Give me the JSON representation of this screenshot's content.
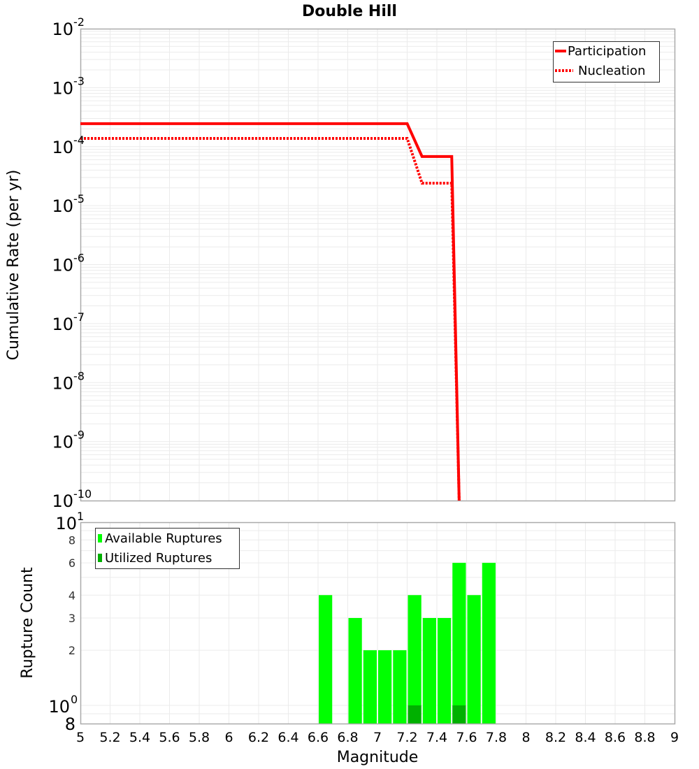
{
  "title": "Double Hill",
  "colors": {
    "participation": "#ff0000",
    "nucleation": "#ff0000",
    "available": "#00ff00",
    "utilized": "#00b000",
    "grid": "#ebebeb",
    "frame": "#aaaaaa"
  },
  "top_plot": {
    "ylabel": "Cumulative Rate (per yr)",
    "y_ticks": [
      {
        "base": "10",
        "exp": "-2"
      },
      {
        "base": "10",
        "exp": "-3"
      },
      {
        "base": "10",
        "exp": "-4"
      },
      {
        "base": "10",
        "exp": "-5"
      },
      {
        "base": "10",
        "exp": "-6"
      },
      {
        "base": "10",
        "exp": "-7"
      },
      {
        "base": "10",
        "exp": "-8"
      },
      {
        "base": "10",
        "exp": "-9"
      },
      {
        "base": "10",
        "exp": "-10"
      }
    ],
    "legend": [
      {
        "label": "Participation",
        "style": "solid"
      },
      {
        "label": "Nucleation",
        "style": "dotted"
      }
    ]
  },
  "bottom_plot": {
    "ylabel": "Rupture Count",
    "xlabel": "Magnitude",
    "y_ticks_small": [
      "8",
      "6",
      "4",
      "3",
      "2"
    ],
    "y_tick_top": {
      "base": "10",
      "exp": "1"
    },
    "y_tick_mid": {
      "base": "10",
      "exp": "0"
    },
    "y_tick_bottom": "8",
    "legend": [
      {
        "label": "Available Ruptures"
      },
      {
        "label": "Utilized Ruptures"
      }
    ]
  },
  "x_ticks": [
    "5",
    "5.2",
    "5.4",
    "5.6",
    "5.8",
    "6",
    "6.2",
    "6.4",
    "6.6",
    "6.8",
    "7",
    "7.2",
    "7.4",
    "7.6",
    "7.8",
    "8",
    "8.2",
    "8.4",
    "8.6",
    "8.8",
    "9"
  ],
  "chart_data": [
    {
      "type": "line",
      "title": "Double Hill",
      "xlabel": "Magnitude",
      "ylabel": "Cumulative Rate (per yr)",
      "yscale": "log",
      "xlim": [
        5,
        9
      ],
      "ylim": [
        1e-10,
        0.01
      ],
      "grid": true,
      "legend_position": "top-right",
      "series": [
        {
          "name": "Participation",
          "style": "solid",
          "x": [
            5.0,
            7.2,
            7.3,
            7.5,
            7.55
          ],
          "y": [
            0.000245,
            0.000245,
            6.8e-05,
            6.8e-05,
            1e-10
          ]
        },
        {
          "name": "Nucleation",
          "style": "dotted",
          "x": [
            5.0,
            7.2,
            7.3,
            7.5,
            7.55
          ],
          "y": [
            0.000138,
            0.000138,
            2.4e-05,
            2.4e-05,
            1e-10
          ]
        }
      ]
    },
    {
      "type": "bar",
      "xlabel": "Magnitude",
      "ylabel": "Rupture Count",
      "yscale": "log",
      "xlim": [
        5,
        9
      ],
      "ylim": [
        0.8,
        10
      ],
      "grid": true,
      "legend_position": "top-left",
      "bin_width": 0.1,
      "categories": [
        6.65,
        6.85,
        6.95,
        7.05,
        7.15,
        7.25,
        7.35,
        7.45,
        7.55,
        7.65,
        7.75
      ],
      "series": [
        {
          "name": "Available Ruptures",
          "values": [
            4,
            3,
            2,
            2,
            2,
            4,
            3,
            3,
            6,
            4,
            6
          ]
        },
        {
          "name": "Utilized Ruptures",
          "values": [
            0,
            0,
            0,
            0,
            0,
            1,
            0,
            0,
            1,
            0,
            0
          ]
        }
      ]
    }
  ]
}
